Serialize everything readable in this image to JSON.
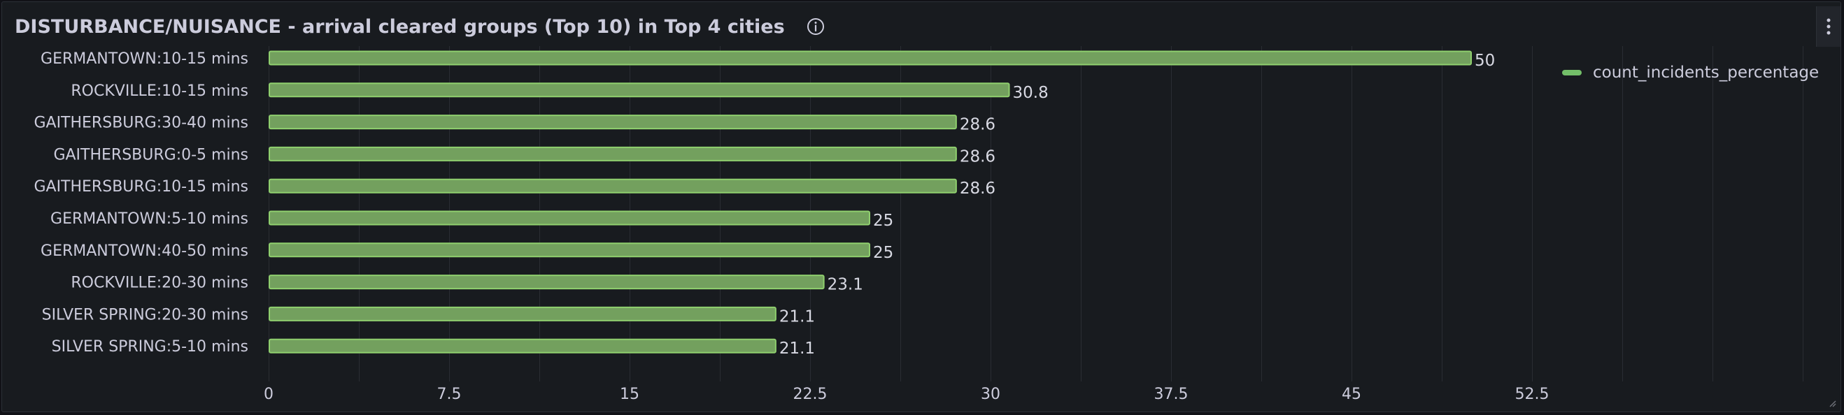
{
  "panel": {
    "title": "DISTURBANCE/NUISANCE - arrival cleared groups (Top 10) in Top 4 cities",
    "info_icon": "info-circle-icon",
    "menu_icon": "kebab-menu-icon"
  },
  "colors": {
    "bar_fill": "#73a05e",
    "bar_stroke": "#8fcf6e",
    "legend": "#73bf69"
  },
  "legend": {
    "items": [
      "count_incidents_percentage"
    ]
  },
  "chart_data": {
    "type": "bar",
    "orientation": "horizontal",
    "title": "DISTURBANCE/NUISANCE - arrival cleared groups (Top 10) in Top 4 cities",
    "categories": [
      "GERMANTOWN:10-15 mins",
      "ROCKVILLE:10-15 mins",
      "GAITHERSBURG:30-40 mins",
      "GAITHERSBURG:0-5 mins",
      "GAITHERSBURG:10-15 mins",
      "GERMANTOWN:5-10 mins",
      "GERMANTOWN:40-50 mins",
      "ROCKVILLE:20-30 mins",
      "SILVER SPRING:20-30 mins",
      "SILVER SPRING:5-10 mins"
    ],
    "series": [
      {
        "name": "count_incidents_percentage",
        "values": [
          50,
          30.8,
          28.6,
          28.6,
          28.6,
          25,
          25,
          23.1,
          21.1,
          21.1
        ]
      }
    ],
    "value_labels": [
      "50",
      "30.8",
      "28.6",
      "28.6",
      "28.6",
      "25",
      "25",
      "23.1",
      "21.1",
      "21.1"
    ],
    "x_ticks": [
      "0",
      "7.5",
      "15",
      "22.5",
      "30",
      "37.5",
      "45",
      "52.5"
    ],
    "x_tick_values": [
      0,
      7.5,
      15,
      22.5,
      30,
      37.5,
      45,
      52.5
    ],
    "xlim": [
      0,
      52.5
    ],
    "grid": true,
    "legend_position": "top-right"
  }
}
